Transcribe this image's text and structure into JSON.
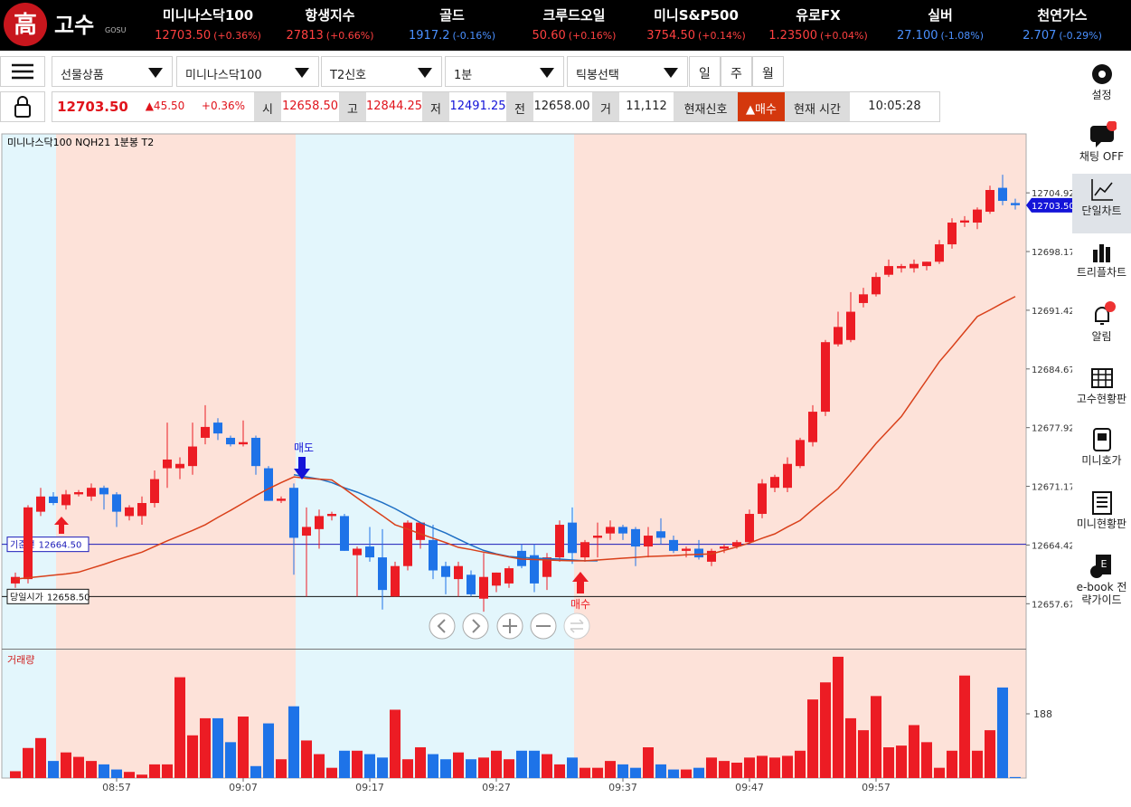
{
  "header": {
    "logo_mark": "高",
    "logo": "고수",
    "logo_sub": "GOSU",
    "tickers": [
      {
        "name": "미니나스닥100",
        "price": "12703.50",
        "change": "(+0.36%)",
        "color": "#ff4040"
      },
      {
        "name": "항생지수",
        "price": "27813",
        "change": "(+0.66%)",
        "color": "#ff4040"
      },
      {
        "name": "골드",
        "price": "1917.2",
        "change": "(-0.16%)",
        "color": "#4a90ff"
      },
      {
        "name": "크루드오일",
        "price": "50.60",
        "change": "(+0.16%)",
        "color": "#ff4040"
      },
      {
        "name": "미니S&P500",
        "price": "3754.50",
        "change": "(+0.14%)",
        "color": "#ff4040"
      },
      {
        "name": "유로FX",
        "price": "1.23500",
        "change": "(+0.04%)",
        "color": "#ff4040"
      },
      {
        "name": "실버",
        "price": "27.100",
        "change": "(-1.08%)",
        "color": "#4a90ff"
      },
      {
        "name": "천연가스",
        "price": "2.707",
        "change": "(-0.29%)",
        "color": "#4a90ff"
      }
    ]
  },
  "toolbar": {
    "selects": [
      "선물상품",
      "미니나스닥100",
      "T2신호",
      "1분",
      "틱봉선택"
    ],
    "periods": [
      "일",
      "주",
      "월"
    ]
  },
  "quote": {
    "price": "12703.50",
    "change": "▲45.50",
    "change_pct": "+0.36%",
    "fields": [
      {
        "label": "시",
        "value": "12658.50"
      },
      {
        "label": "고",
        "value": "12844.25"
      },
      {
        "label": "저",
        "value": "12491.25"
      },
      {
        "label": "전",
        "value": "12658.00"
      },
      {
        "label": "거",
        "value": "11,112"
      }
    ],
    "signal_label": "현재신호",
    "signal": "▲매수",
    "time_label": "현재 시간",
    "time": "10:05:28"
  },
  "sidebar": [
    "설정",
    "채팅 OFF",
    "단일차트",
    "트리플차트",
    "알림",
    "고수현황판",
    "미니호가",
    "미니현황판",
    "e-book 전략가이드"
  ],
  "chart_data": [
    {
      "type": "candlestick",
      "title": "미니나스닥100  NQH21  1분봉  T2",
      "categories": [
        null,
        null,
        null,
        null,
        null,
        null,
        null,
        null,
        "08:57",
        null,
        null,
        null,
        null,
        null,
        null,
        null,
        null,
        null,
        "09:07",
        null,
        null,
        null,
        null,
        null,
        null,
        null,
        null,
        null,
        "09:17",
        null,
        null,
        null,
        null,
        null,
        null,
        null,
        null,
        null,
        "09:27",
        null,
        null,
        null,
        null,
        null,
        null,
        null,
        null,
        null,
        "09:37",
        null,
        null,
        null,
        null,
        null,
        null,
        null,
        null,
        null,
        "09:47",
        null,
        null,
        null,
        null,
        null,
        null,
        null,
        null,
        null,
        "09:57",
        null,
        null,
        null,
        null,
        null,
        null,
        null,
        null,
        null,
        null,
        null
      ],
      "open": [
        12660.0,
        12660.5,
        12668.25,
        12670.0,
        12669.0,
        12670.25,
        12670.0,
        12671.0,
        12670.25,
        12667.75,
        12667.75,
        12669.25,
        12673.25,
        12673.25,
        12673.5,
        12676.75,
        12678.5,
        12676.75,
        12676.0,
        12676.75,
        12673.25,
        12669.5,
        12671.0,
        12665.5,
        12666.25,
        12667.75,
        12667.75,
        12663.25,
        12664.25,
        12663.0,
        12658.5,
        12662.0,
        12665.0,
        12665.0,
        12662.0,
        12660.5,
        12661.0,
        12658.25,
        12659.75,
        12660.0,
        12663.75,
        12663.25,
        12660.75,
        12663.0,
        12667.0,
        12663.0,
        12665.25,
        12665.75,
        12666.5,
        12666.25,
        12664.25,
        12666.0,
        12665.0,
        12663.75,
        12664.0,
        12662.5,
        12664.0,
        12664.25,
        12664.75,
        12668.0,
        12671.0,
        12671.0,
        12673.5,
        12676.25,
        12679.75,
        12687.5,
        12688.0,
        12692.25,
        12693.25,
        12695.5,
        12696.25,
        12696.25,
        12696.5,
        12697.0,
        12699.0,
        12701.5,
        12701.5,
        12702.75,
        12705.5,
        12703.75
      ],
      "high": [
        12661.25,
        12669.0,
        12671.0,
        12670.5,
        12670.75,
        12670.75,
        12671.5,
        12671.25,
        12670.5,
        12669.0,
        12670.0,
        12673.0,
        12678.5,
        12674.5,
        12678.5,
        12680.5,
        12679.0,
        12677.0,
        12678.75,
        12677.0,
        12673.5,
        12670.0,
        12671.5,
        12668.75,
        12668.5,
        12668.25,
        12668.0,
        12664.25,
        12666.5,
        12666.25,
        12662.5,
        12667.25,
        12667.0,
        12666.75,
        12662.5,
        12662.5,
        12661.5,
        12663.5,
        12661.25,
        12662.0,
        12664.5,
        12664.5,
        12663.5,
        12667.25,
        12668.75,
        12665.0,
        12667.0,
        12667.25,
        12666.75,
        12666.5,
        12666.5,
        12667.5,
        12665.5,
        12664.25,
        12665.0,
        12664.0,
        12664.5,
        12665.0,
        12668.5,
        12672.0,
        12672.5,
        12674.5,
        12676.75,
        12680.5,
        12688.0,
        12691.25,
        12693.5,
        12694.0,
        12695.75,
        12697.25,
        12696.75,
        12697.25,
        12697.0,
        12699.5,
        12702.0,
        12702.25,
        12703.25,
        12705.75,
        12707.0,
        12704.25
      ],
      "low": [
        12659.5,
        12660.0,
        12667.75,
        12669.0,
        12668.5,
        12670.0,
        12669.5,
        12668.5,
        12666.5,
        12667.25,
        12666.75,
        12668.75,
        12671.0,
        12672.0,
        12672.5,
        12676.0,
        12676.5,
        12675.75,
        12675.75,
        12672.5,
        12669.5,
        12669.25,
        12661.0,
        12658.5,
        12664.0,
        12667.25,
        12663.75,
        12658.5,
        12662.5,
        12657.0,
        12658.5,
        12661.5,
        12664.0,
        12660.5,
        12658.75,
        12658.5,
        12658.5,
        12656.75,
        12659.0,
        12659.5,
        12661.75,
        12659.0,
        12659.25,
        12662.5,
        12662.25,
        12662.5,
        12663.0,
        12665.0,
        12665.0,
        12662.0,
        12663.0,
        12664.5,
        12663.5,
        12663.0,
        12662.75,
        12662.0,
        12663.5,
        12664.0,
        12664.5,
        12667.5,
        12670.5,
        12670.5,
        12673.25,
        12675.75,
        12679.25,
        12687.25,
        12687.75,
        12691.75,
        12693.0,
        12695.25,
        12695.75,
        12695.75,
        12696.0,
        12696.75,
        12698.5,
        12701.0,
        12700.75,
        12702.5,
        12703.5,
        12703.0
      ],
      "close": [
        12660.75,
        12668.75,
        12670.0,
        12669.25,
        12670.25,
        12670.5,
        12671.0,
        12670.25,
        12668.25,
        12668.75,
        12669.25,
        12672.0,
        12674.25,
        12673.75,
        12675.75,
        12678.0,
        12677.25,
        12676.0,
        12676.25,
        12673.5,
        12669.5,
        12669.75,
        12665.25,
        12666.5,
        12667.75,
        12668.0,
        12663.75,
        12664.0,
        12663.0,
        12659.25,
        12662.0,
        12667.0,
        12667.0,
        12661.5,
        12660.75,
        12662.0,
        12658.75,
        12660.75,
        12661.25,
        12661.75,
        12662.0,
        12660.0,
        12663.0,
        12666.75,
        12663.5,
        12664.75,
        12665.5,
        12666.5,
        12665.75,
        12664.25,
        12665.5,
        12665.25,
        12663.75,
        12664.0,
        12663.0,
        12663.75,
        12664.25,
        12664.75,
        12668.0,
        12671.5,
        12672.25,
        12673.75,
        12676.5,
        12679.75,
        12687.75,
        12689.5,
        12691.25,
        12693.25,
        12695.25,
        12696.5,
        12696.5,
        12696.75,
        12697.0,
        12699.0,
        12701.5,
        12701.75,
        12703.0,
        12705.25,
        12704.0,
        12703.5
      ],
      "up_color": "#ec1c24",
      "down_color": "#1e73e8",
      "ma_lines": [
        {
          "color": "#1f6fc4",
          "values": [
            null,
            null,
            null,
            null,
            null,
            null,
            null,
            null,
            null,
            null,
            null,
            null,
            null,
            null,
            null,
            null,
            null,
            null,
            null,
            null,
            null,
            null,
            12672.5,
            12672.25,
            12672.0,
            12671.6,
            12671.0,
            12670.5,
            12669.9,
            12669.3,
            12668.6,
            12667.8,
            12667.0,
            12666.4,
            12665.8,
            12665.1,
            12664.4,
            12663.8,
            12663.4,
            12663.1,
            12663.0,
            12662.9,
            12662.85,
            12662.8,
            12662.7,
            12662.6,
            12662.6,
            null,
            null,
            null,
            null,
            null,
            null,
            null,
            null,
            null,
            null,
            null,
            null,
            null,
            null,
            null,
            null,
            null,
            null,
            null,
            null,
            null,
            null,
            null,
            null,
            null,
            null,
            null,
            null,
            null,
            null,
            null,
            null,
            null
          ]
        },
        {
          "color": "#d9401a",
          "values": [
            12660.5,
            12660.65,
            12660.8,
            12660.95,
            12661.1,
            12661.3,
            12661.75,
            12662.2,
            12662.7,
            12663.15,
            12663.6,
            12664.25,
            12664.9,
            12665.5,
            12666.1,
            12666.75,
            12667.6,
            12668.4,
            12669.25,
            12670.1,
            12670.9,
            12671.6,
            12672.25,
            12672.1,
            12672.0,
            12671.9,
            12670.9,
            12669.85,
            12668.8,
            12667.8,
            12666.75,
            12666.25,
            12665.7,
            12665.2,
            12664.7,
            12664.15,
            12663.9,
            12663.6,
            12663.35,
            12663.05,
            12662.8,
            12662.75,
            12662.7,
            12662.65,
            12662.6,
            12662.6,
            12662.7,
            12662.8,
            12662.9,
            12663.0,
            12663.1,
            12663.15,
            12663.2,
            12663.3,
            12663.35,
            12663.4,
            12663.8,
            12664.2,
            12664.65,
            12665.2,
            12665.7,
            12666.5,
            12667.25,
            12668.5,
            12669.7,
            12670.9,
            12672.6,
            12674.35,
            12676.1,
            12677.65,
            12679.2,
            12681.3,
            12683.4,
            12685.5,
            12687.2,
            12688.95,
            12690.7,
            12691.45,
            12692.25,
            12693.0
          ]
        }
      ],
      "reference_lines": [
        {
          "label": "기준선",
          "value": 12664.5,
          "value_label": "12664.50",
          "color": "#1a1ab8"
        },
        {
          "label": "당일시가",
          "value": 12658.5,
          "value_label": "12658.50",
          "color": "#111111"
        }
      ],
      "current_price": {
        "value": 12703.5,
        "label": "12703.50",
        "color": "#1414d8"
      },
      "annotations": [
        "매도",
        "매수"
      ],
      "ylim": [
        12652.5,
        12711.7
      ],
      "yticks": [
        12704.92,
        12698.17,
        12691.42,
        12684.67,
        12677.92,
        12671.17,
        12664.42,
        12657.67
      ]
    },
    {
      "type": "bar",
      "title": "거래량",
      "values": [
        20,
        88,
        117,
        50,
        75,
        62,
        50,
        40,
        25,
        18,
        10,
        40,
        40,
        295,
        125,
        175,
        175,
        105,
        180,
        35,
        160,
        55,
        210,
        110,
        70,
        30,
        80,
        80,
        70,
        60,
        200,
        55,
        90,
        70,
        55,
        75,
        55,
        60,
        80,
        55,
        80,
        80,
        70,
        40,
        60,
        30,
        30,
        50,
        40,
        30,
        90,
        40,
        25,
        25,
        30,
        60,
        50,
        45,
        60,
        65,
        60,
        65,
        80,
        230,
        280,
        355,
        175,
        140,
        240,
        90,
        95,
        155,
        105,
        30,
        80,
        300,
        80,
        140,
        265,
        3
      ],
      "ylim": [
        0,
        376
      ],
      "yticks": [
        188
      ]
    }
  ]
}
